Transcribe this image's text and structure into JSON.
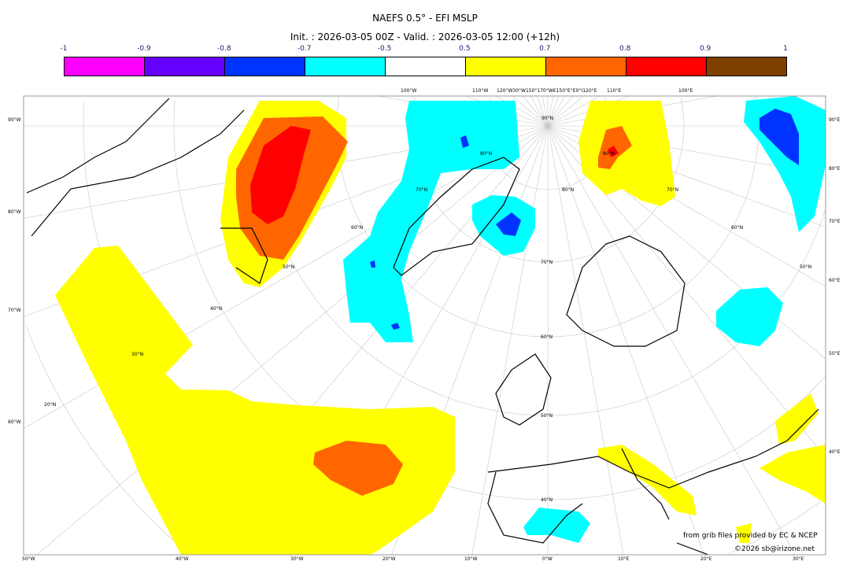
{
  "title": "NAEFS 0.5° - EFI MSLP",
  "subtitle": "Init. : 2026-03-05 00Z - Valid. : 2026-03-05 12:00 (+12h)",
  "colorbar": {
    "ticks": [
      "-1",
      "-0.9",
      "-0.8",
      "-0.7",
      "-0.5",
      "0.5",
      "0.7",
      "0.8",
      "0.9",
      "1"
    ],
    "colors": [
      "#ff00ff",
      "#6600ff",
      "#0033ff",
      "#00ffff",
      "#ffffff",
      "#ffff00",
      "#ff6600",
      "#ff0000",
      "#7f3f00"
    ]
  },
  "map": {
    "top_labels": [
      "100°W",
      "110°W",
      "120°W30°W150°170°W€150°E°E0°I120°E",
      "110°E",
      "100°E"
    ],
    "left_labels": [
      "90°W",
      "80°W",
      "70°W",
      "60°W"
    ],
    "right_labels": [
      "90°E",
      "80°E",
      "70°E",
      "60°E",
      "50°E",
      "40°E"
    ],
    "bottom_labels": [
      "50°W",
      "40°W",
      "30°W",
      "20°W",
      "10°W",
      "0°W",
      "10°E",
      "20°E",
      "30°E"
    ],
    "inner_labels": [
      "90°N",
      "80°N",
      "80°N",
      "70°N",
      "80°N",
      "70°N",
      "60°N",
      "60°N",
      "70°N",
      "50°N",
      "50°N",
      "40°N",
      "60°N",
      "30°N",
      "20°N",
      "50°N",
      "40°N"
    ]
  },
  "credits": {
    "source": "from grib files provided by EC & NCEP",
    "copyright": "©2026 sb@irizone.net"
  }
}
